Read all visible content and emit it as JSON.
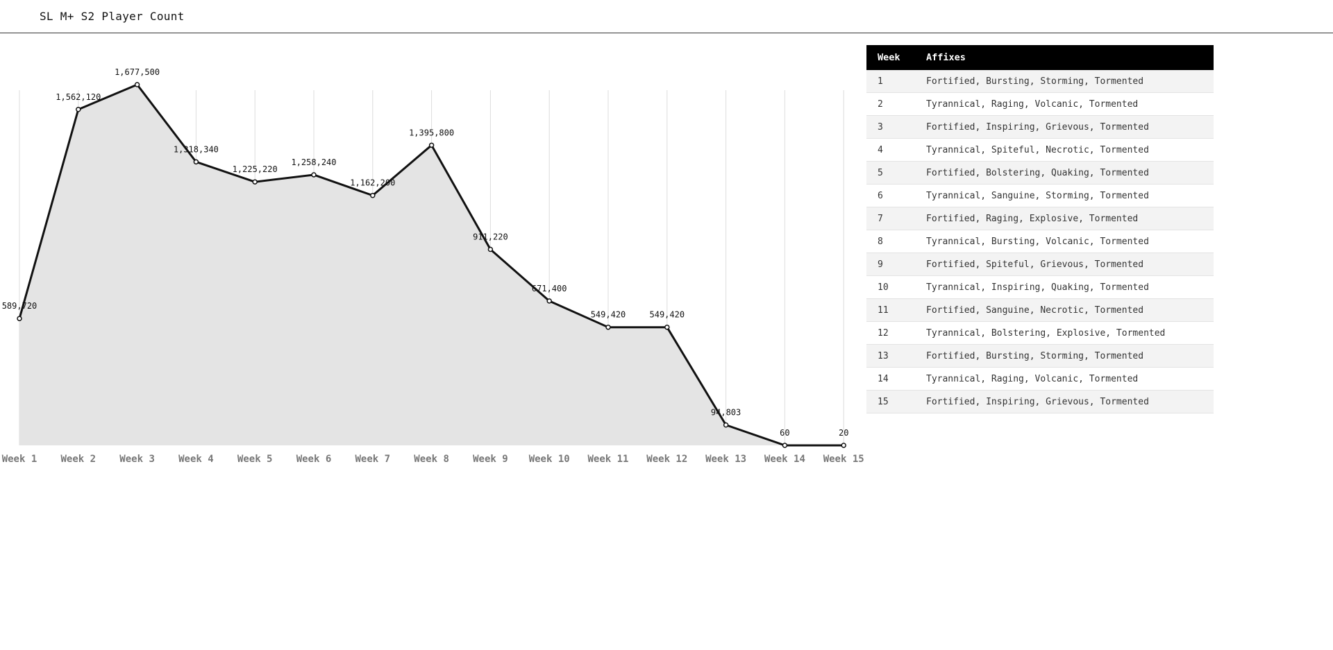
{
  "header": {
    "title": "SL M+ S2 Player Count"
  },
  "chart_data": {
    "type": "area",
    "title": "SL M+ S2 Player Count",
    "xlabel": "",
    "ylabel": "",
    "categories": [
      "Week 1",
      "Week 2",
      "Week 3",
      "Week 4",
      "Week 5",
      "Week 6",
      "Week 7",
      "Week 8",
      "Week 9",
      "Week 10",
      "Week 11",
      "Week 12",
      "Week 13",
      "Week 14",
      "Week 15"
    ],
    "series": [
      {
        "values": [
          589720,
          1562120,
          1677500,
          1318340,
          1225220,
          1258240,
          1162200,
          1395800,
          911220,
          671400,
          549420,
          549420,
          94803,
          60,
          20
        ],
        "labels": [
          "589,720",
          "1,562,120",
          "1,677,500",
          "1,318,340",
          "1,225,220",
          "1,258,240",
          "1,162,200",
          "1,395,800",
          "911,220",
          "671,400",
          "549,420",
          "549,420",
          "94,803",
          "60",
          "20"
        ]
      }
    ],
    "ylim": [
      0,
      1800000
    ],
    "grid": "vertical",
    "legend": "none",
    "colors": {
      "line": "#111111",
      "area": "#e4e4e4",
      "grid": "#dcdcdc",
      "tick": "#777777"
    }
  },
  "affix_table": {
    "headers": [
      "Week",
      "Affixes"
    ],
    "rows": [
      {
        "week": "1",
        "affixes": "Fortified, Bursting, Storming, Tormented"
      },
      {
        "week": "2",
        "affixes": "Tyrannical, Raging, Volcanic, Tormented"
      },
      {
        "week": "3",
        "affixes": "Fortified, Inspiring, Grievous, Tormented"
      },
      {
        "week": "4",
        "affixes": "Tyrannical, Spiteful, Necrotic, Tormented"
      },
      {
        "week": "5",
        "affixes": "Fortified, Bolstering, Quaking, Tormented"
      },
      {
        "week": "6",
        "affixes": "Tyrannical, Sanguine, Storming, Tormented"
      },
      {
        "week": "7",
        "affixes": "Fortified, Raging, Explosive, Tormented"
      },
      {
        "week": "8",
        "affixes": "Tyrannical, Bursting, Volcanic, Tormented"
      },
      {
        "week": "9",
        "affixes": "Fortified, Spiteful, Grievous, Tormented"
      },
      {
        "week": "10",
        "affixes": "Tyrannical, Inspiring, Quaking, Tormented"
      },
      {
        "week": "11",
        "affixes": "Fortified, Sanguine, Necrotic, Tormented"
      },
      {
        "week": "12",
        "affixes": "Tyrannical, Bolstering, Explosive, Tormented"
      },
      {
        "week": "13",
        "affixes": "Fortified, Bursting, Storming, Tormented"
      },
      {
        "week": "14",
        "affixes": "Tyrannical, Raging, Volcanic, Tormented"
      },
      {
        "week": "15",
        "affixes": "Fortified, Inspiring, Grievous, Tormented"
      }
    ]
  }
}
